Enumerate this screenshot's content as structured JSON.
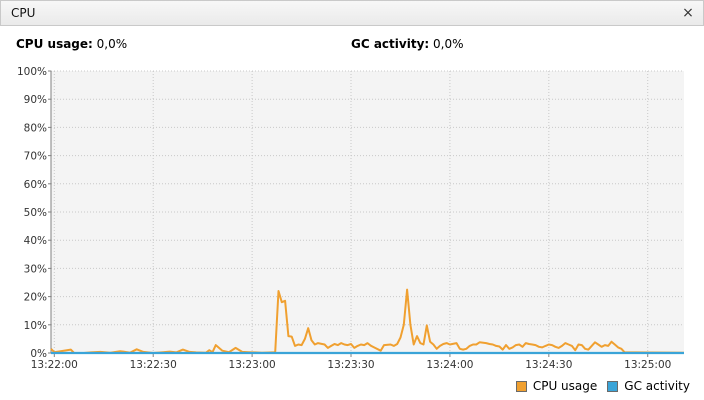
{
  "panel": {
    "title": "CPU",
    "close_glyph": "×"
  },
  "stats": {
    "cpu_label": "CPU usage:",
    "cpu_value": "0,0%",
    "gc_label": "GC activity:",
    "gc_value": "0,0%"
  },
  "chart_data": {
    "type": "line",
    "ylim": [
      0,
      100
    ],
    "y_ticks": [
      "0%",
      "10%",
      "20%",
      "30%",
      "40%",
      "50%",
      "60%",
      "70%",
      "80%",
      "90%",
      "100%"
    ],
    "x_ticks": [
      "13:22:00",
      "13:22:30",
      "13:23:00",
      "13:23:30",
      "13:24:00",
      "13:24:30",
      "13:25:00"
    ],
    "x_tick_seconds": [
      0,
      30,
      60,
      90,
      120,
      150,
      180
    ],
    "xlim_seconds": [
      -1,
      191
    ],
    "grid": true,
    "legend": "bottom-right",
    "series": [
      {
        "name": "CPU usage",
        "color": "#f0a030",
        "points": [
          [
            -1,
            1.5
          ],
          [
            0,
            0.3
          ],
          [
            5,
            1.2
          ],
          [
            6,
            0
          ],
          [
            9,
            0
          ],
          [
            11,
            0.2
          ],
          [
            14,
            0.4
          ],
          [
            17,
            0.1
          ],
          [
            20,
            0.6
          ],
          [
            21,
            0.5
          ],
          [
            23,
            0.1
          ],
          [
            25,
            1.3
          ],
          [
            27,
            0.4
          ],
          [
            30,
            0
          ],
          [
            33,
            0.3
          ],
          [
            35,
            0.5
          ],
          [
            37,
            0.2
          ],
          [
            39,
            1.2
          ],
          [
            41,
            0.4
          ],
          [
            43,
            0.2
          ],
          [
            46,
            0.1
          ],
          [
            47,
            1.0
          ],
          [
            48,
            0.3
          ],
          [
            49,
            2.8
          ],
          [
            51,
            0.8
          ],
          [
            53,
            0.3
          ],
          [
            55,
            1.8
          ],
          [
            57,
            0.4
          ],
          [
            59,
            0.3
          ],
          [
            61,
            0.2
          ],
          [
            63,
            0.1
          ],
          [
            67,
            0.3
          ],
          [
            68,
            22
          ],
          [
            69,
            18
          ],
          [
            70,
            18.5
          ],
          [
            71,
            6
          ],
          [
            72,
            5.8
          ],
          [
            73,
            2.5
          ],
          [
            74,
            3
          ],
          [
            75,
            2.8
          ],
          [
            76,
            5
          ],
          [
            77,
            8.8
          ],
          [
            78,
            4.5
          ],
          [
            79,
            3
          ],
          [
            80,
            3.5
          ],
          [
            82,
            3
          ],
          [
            83,
            1.8
          ],
          [
            84,
            2.5
          ],
          [
            85,
            3.2
          ],
          [
            86,
            2.8
          ],
          [
            87,
            3.5
          ],
          [
            88,
            3
          ],
          [
            89,
            2.8
          ],
          [
            90,
            3.2
          ],
          [
            91,
            1.8
          ],
          [
            92,
            2.5
          ],
          [
            93,
            3
          ],
          [
            94,
            2.8
          ],
          [
            95,
            3.5
          ],
          [
            96,
            2.6
          ],
          [
            97,
            2
          ],
          [
            99,
            0.8
          ],
          [
            100,
            2.8
          ],
          [
            102,
            3
          ],
          [
            103,
            2.5
          ],
          [
            104,
            3.2
          ],
          [
            105,
            5.5
          ],
          [
            106,
            10
          ],
          [
            107,
            22.5
          ],
          [
            108,
            10
          ],
          [
            109,
            3
          ],
          [
            110,
            6
          ],
          [
            111,
            3.5
          ],
          [
            112,
            3
          ],
          [
            113,
            9.8
          ],
          [
            114,
            4
          ],
          [
            115,
            3
          ],
          [
            116,
            1.5
          ],
          [
            117,
            2.5
          ],
          [
            118,
            3.2
          ],
          [
            119,
            3.5
          ],
          [
            120,
            3
          ],
          [
            122,
            3.5
          ],
          [
            123,
            1.5
          ],
          [
            124,
            1.2
          ],
          [
            125,
            1.5
          ],
          [
            126,
            2.5
          ],
          [
            127,
            3
          ],
          [
            128,
            3
          ],
          [
            129,
            3.8
          ],
          [
            131,
            3.5
          ],
          [
            132,
            3.2
          ],
          [
            133,
            3
          ],
          [
            134,
            2.5
          ],
          [
            135,
            2.3
          ],
          [
            136,
            1.2
          ],
          [
            137,
            2.8
          ],
          [
            138,
            1.5
          ],
          [
            139,
            2
          ],
          [
            140,
            2.8
          ],
          [
            141,
            3
          ],
          [
            142,
            2.2
          ],
          [
            143,
            3.5
          ],
          [
            144,
            3.2
          ],
          [
            145,
            3
          ],
          [
            146,
            2.8
          ],
          [
            147,
            2.2
          ],
          [
            148,
            2
          ],
          [
            149,
            2.5
          ],
          [
            150,
            3
          ],
          [
            151,
            2.8
          ],
          [
            152,
            2.2
          ],
          [
            153,
            1.8
          ],
          [
            154,
            2.5
          ],
          [
            155,
            3.5
          ],
          [
            156,
            3
          ],
          [
            157,
            2.5
          ],
          [
            158,
            1
          ],
          [
            159,
            3
          ],
          [
            160,
            2.8
          ],
          [
            161,
            1.5
          ],
          [
            162,
            1.2
          ],
          [
            163,
            2.5
          ],
          [
            164,
            3.8
          ],
          [
            165,
            3
          ],
          [
            166,
            2.2
          ],
          [
            167,
            2.8
          ],
          [
            168,
            2.5
          ],
          [
            169,
            4
          ],
          [
            170,
            3
          ],
          [
            171,
            2
          ],
          [
            172,
            1.5
          ],
          [
            173,
            0.2
          ],
          [
            175,
            0.2
          ],
          [
            191,
            0.1
          ]
        ]
      },
      {
        "name": "GC activity",
        "color": "#3aa4d8",
        "points": [
          [
            -1,
            0
          ],
          [
            191,
            0
          ]
        ]
      }
    ]
  }
}
